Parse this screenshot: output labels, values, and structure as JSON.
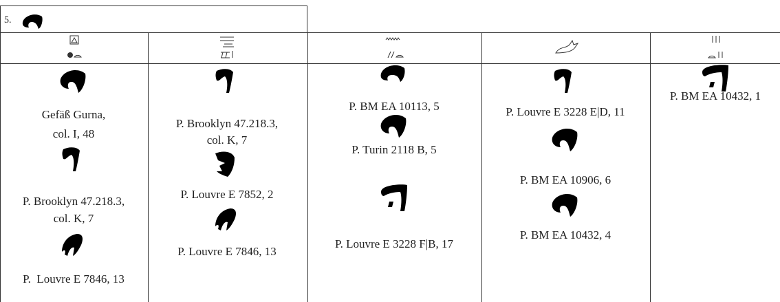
{
  "entry": {
    "number": "5."
  },
  "columns": [
    {
      "items": [
        {
          "lines": [
            "Gefäß Gurna,",
            "col. I, 48"
          ]
        },
        {
          "lines": [
            "P. Brooklyn 47.218.3,",
            "col. K, 7"
          ]
        },
        {
          "lines": [
            "P.  Louvre E 7846, 13"
          ]
        }
      ]
    },
    {
      "items": [
        {
          "lines": [
            "P. Brooklyn 47.218.3,",
            "col. K, 7"
          ]
        },
        {
          "lines": [
            "P. Louvre E 7852, 2"
          ]
        },
        {
          "lines": [
            "P. Louvre E 7846, 13"
          ]
        }
      ]
    },
    {
      "items": [
        {
          "lines": [
            "P. BM EA 10113, 5"
          ]
        },
        {
          "lines": [
            "P. Turin 2118 B, 5"
          ]
        },
        {
          "lines": [
            "P. Louvre E 3228 F|B, 17"
          ]
        }
      ]
    },
    {
      "items": [
        {
          "lines": [
            "P. Louvre E 3228 E|D, 11"
          ]
        },
        {
          "lines": [
            "P. BM EA 10906, 6"
          ]
        },
        {
          "lines": [
            "P. BM EA 10432, 4"
          ]
        }
      ]
    },
    {
      "items": [
        {
          "lines": [
            "P. BM EA 10432, 1"
          ]
        }
      ]
    }
  ]
}
